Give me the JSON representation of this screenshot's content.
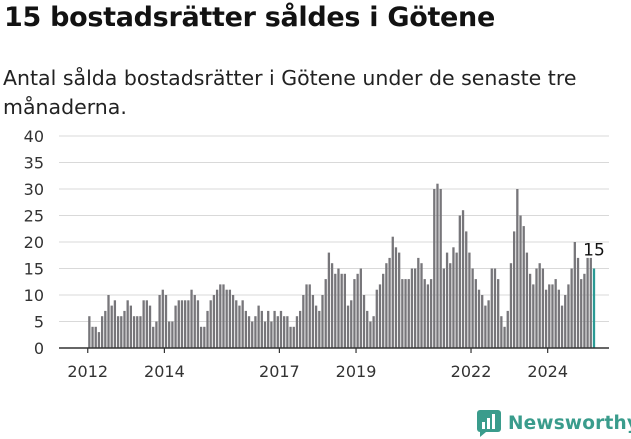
{
  "header": {
    "title": "15 bostadsrätter såldes i Götene",
    "subtitle": "Antal sålda bostadsrätter i Götene under de senaste tre månaderna."
  },
  "brand": {
    "name": "Newsworthy"
  },
  "colors": {
    "bar": "#77767a",
    "highlight": "#2a9a94",
    "grid": "#d9d9d9",
    "axis": "#333333",
    "brand": "#3a9c8c"
  },
  "chart_data": {
    "type": "bar",
    "title": "",
    "xlabel": "",
    "ylabel": "",
    "ylim": [
      0,
      40
    ],
    "yticks": [
      0,
      5,
      10,
      15,
      20,
      25,
      30,
      35,
      40
    ],
    "x_range_years": [
      2011.25,
      2025.6
    ],
    "xtick_labels": [
      "2012",
      "2014",
      "2017",
      "2019",
      "2022",
      "2024"
    ],
    "xtick_years": [
      2012,
      2014,
      2017,
      2019,
      2022,
      2024
    ],
    "grid": true,
    "period": "3-month rolling, monthly",
    "start": "2012-01",
    "end": "2025-03",
    "values": [
      6,
      4,
      4,
      3,
      6,
      7,
      10,
      8,
      9,
      6,
      6,
      7,
      9,
      8,
      6,
      6,
      6,
      9,
      9,
      8,
      4,
      5,
      10,
      11,
      10,
      5,
      5,
      8,
      9,
      9,
      9,
      9,
      11,
      10,
      9,
      4,
      4,
      7,
      9,
      10,
      11,
      12,
      12,
      11,
      11,
      10,
      9,
      8,
      9,
      7,
      6,
      5,
      6,
      8,
      7,
      5,
      7,
      5,
      7,
      6,
      7,
      6,
      6,
      4,
      4,
      6,
      7,
      10,
      12,
      12,
      10,
      8,
      7,
      10,
      13,
      18,
      16,
      14,
      15,
      14,
      14,
      8,
      9,
      13,
      14,
      15,
      10,
      7,
      5,
      6,
      11,
      12,
      14,
      16,
      17,
      21,
      19,
      18,
      13,
      13,
      13,
      15,
      15,
      17,
      16,
      13,
      12,
      13,
      30,
      31,
      30,
      15,
      18,
      16,
      19,
      18,
      25,
      26,
      22,
      18,
      15,
      13,
      11,
      10,
      8,
      9,
      15,
      15,
      13,
      6,
      4,
      7,
      16,
      22,
      30,
      25,
      23,
      18,
      14,
      12,
      15,
      16,
      15,
      11,
      12,
      12,
      13,
      11,
      8,
      10,
      12,
      15,
      20,
      17,
      13,
      14,
      17,
      17,
      15
    ],
    "highlight_last": true,
    "data_label": "15"
  }
}
